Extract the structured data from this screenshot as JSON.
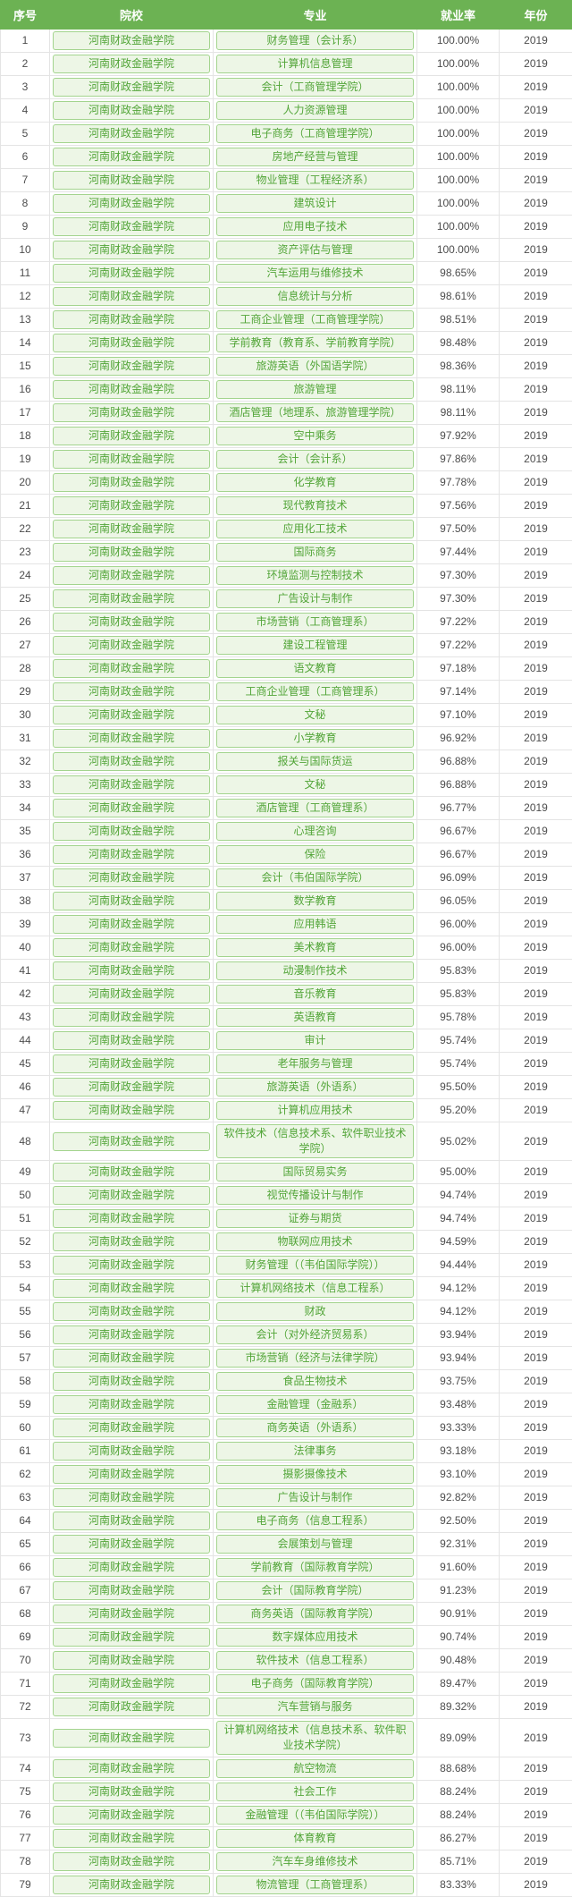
{
  "colors": {
    "header_bg": "#6cb253",
    "header_text": "#ffffff",
    "tag_bg": "#edf6e6",
    "tag_border": "#a3d48e",
    "tag_text": "#52a538",
    "body_text": "#4d4d4d",
    "row_border": "#e4e4e4"
  },
  "chart_data": {
    "type": "table",
    "columns": [
      "序号",
      "院校",
      "专业",
      "就业率",
      "年份"
    ],
    "rows": [
      [
        1,
        "河南财政金融学院",
        "财务管理（会计系）",
        "100.00%",
        2019
      ],
      [
        2,
        "河南财政金融学院",
        "计算机信息管理",
        "100.00%",
        2019
      ],
      [
        3,
        "河南财政金融学院",
        "会计（工商管理学院）",
        "100.00%",
        2019
      ],
      [
        4,
        "河南财政金融学院",
        "人力资源管理",
        "100.00%",
        2019
      ],
      [
        5,
        "河南财政金融学院",
        "电子商务（工商管理学院）",
        "100.00%",
        2019
      ],
      [
        6,
        "河南财政金融学院",
        "房地产经营与管理",
        "100.00%",
        2019
      ],
      [
        7,
        "河南财政金融学院",
        "物业管理（工程经济系）",
        "100.00%",
        2019
      ],
      [
        8,
        "河南财政金融学院",
        "建筑设计",
        "100.00%",
        2019
      ],
      [
        9,
        "河南财政金融学院",
        "应用电子技术",
        "100.00%",
        2019
      ],
      [
        10,
        "河南财政金融学院",
        "资产评估与管理",
        "100.00%",
        2019
      ],
      [
        11,
        "河南财政金融学院",
        "汽车运用与维修技术",
        "98.65%",
        2019
      ],
      [
        12,
        "河南财政金融学院",
        "信息统计与分析",
        "98.61%",
        2019
      ],
      [
        13,
        "河南财政金融学院",
        "工商企业管理（工商管理学院）",
        "98.51%",
        2019
      ],
      [
        14,
        "河南财政金融学院",
        "学前教育（教育系、学前教育学院）",
        "98.48%",
        2019
      ],
      [
        15,
        "河南财政金融学院",
        "旅游英语（外国语学院）",
        "98.36%",
        2019
      ],
      [
        16,
        "河南财政金融学院",
        "旅游管理",
        "98.11%",
        2019
      ],
      [
        17,
        "河南财政金融学院",
        "酒店管理（地理系、旅游管理学院）",
        "98.11%",
        2019
      ],
      [
        18,
        "河南财政金融学院",
        "空中乘务",
        "97.92%",
        2019
      ],
      [
        19,
        "河南财政金融学院",
        "会计（会计系）",
        "97.86%",
        2019
      ],
      [
        20,
        "河南财政金融学院",
        "化学教育",
        "97.78%",
        2019
      ],
      [
        21,
        "河南财政金融学院",
        "现代教育技术",
        "97.56%",
        2019
      ],
      [
        22,
        "河南财政金融学院",
        "应用化工技术",
        "97.50%",
        2019
      ],
      [
        23,
        "河南财政金融学院",
        "国际商务",
        "97.44%",
        2019
      ],
      [
        24,
        "河南财政金融学院",
        "环境监测与控制技术",
        "97.30%",
        2019
      ],
      [
        25,
        "河南财政金融学院",
        "广告设计与制作",
        "97.30%",
        2019
      ],
      [
        26,
        "河南财政金融学院",
        "市场营销（工商管理系）",
        "97.22%",
        2019
      ],
      [
        27,
        "河南财政金融学院",
        "建设工程管理",
        "97.22%",
        2019
      ],
      [
        28,
        "河南财政金融学院",
        "语文教育",
        "97.18%",
        2019
      ],
      [
        29,
        "河南财政金融学院",
        "工商企业管理（工商管理系）",
        "97.14%",
        2019
      ],
      [
        30,
        "河南财政金融学院",
        "文秘",
        "97.10%",
        2019
      ],
      [
        31,
        "河南财政金融学院",
        "小学教育",
        "96.92%",
        2019
      ],
      [
        32,
        "河南财政金融学院",
        "报关与国际货运",
        "96.88%",
        2019
      ],
      [
        33,
        "河南财政金融学院",
        "文秘",
        "96.88%",
        2019
      ],
      [
        34,
        "河南财政金融学院",
        "酒店管理（工商管理系）",
        "96.77%",
        2019
      ],
      [
        35,
        "河南财政金融学院",
        "心理咨询",
        "96.67%",
        2019
      ],
      [
        36,
        "河南财政金融学院",
        "保险",
        "96.67%",
        2019
      ],
      [
        37,
        "河南财政金融学院",
        "会计（韦伯国际学院）",
        "96.09%",
        2019
      ],
      [
        38,
        "河南财政金融学院",
        "数学教育",
        "96.05%",
        2019
      ],
      [
        39,
        "河南财政金融学院",
        "应用韩语",
        "96.00%",
        2019
      ],
      [
        40,
        "河南财政金融学院",
        "美术教育",
        "96.00%",
        2019
      ],
      [
        41,
        "河南财政金融学院",
        "动漫制作技术",
        "95.83%",
        2019
      ],
      [
        42,
        "河南财政金融学院",
        "音乐教育",
        "95.83%",
        2019
      ],
      [
        43,
        "河南财政金融学院",
        "英语教育",
        "95.78%",
        2019
      ],
      [
        44,
        "河南财政金融学院",
        "审计",
        "95.74%",
        2019
      ],
      [
        45,
        "河南财政金融学院",
        "老年服务与管理",
        "95.74%",
        2019
      ],
      [
        46,
        "河南财政金融学院",
        "旅游英语（外语系）",
        "95.50%",
        2019
      ],
      [
        47,
        "河南财政金融学院",
        "计算机应用技术",
        "95.20%",
        2019
      ],
      [
        48,
        "河南财政金融学院",
        "软件技术（信息技术系、软件职业技术学院）",
        "95.02%",
        2019
      ],
      [
        49,
        "河南财政金融学院",
        "国际贸易实务",
        "95.00%",
        2019
      ],
      [
        50,
        "河南财政金融学院",
        "视觉传播设计与制作",
        "94.74%",
        2019
      ],
      [
        51,
        "河南财政金融学院",
        "证券与期货",
        "94.74%",
        2019
      ],
      [
        52,
        "河南财政金融学院",
        "物联网应用技术",
        "94.59%",
        2019
      ],
      [
        53,
        "河南财政金融学院",
        "财务管理（（韦伯国际学院））",
        "94.44%",
        2019
      ],
      [
        54,
        "河南财政金融学院",
        "计算机网络技术（信息工程系）",
        "94.12%",
        2019
      ],
      [
        55,
        "河南财政金融学院",
        "财政",
        "94.12%",
        2019
      ],
      [
        56,
        "河南财政金融学院",
        "会计（对外经济贸易系）",
        "93.94%",
        2019
      ],
      [
        57,
        "河南财政金融学院",
        "市场营销（经济与法律学院）",
        "93.94%",
        2019
      ],
      [
        58,
        "河南财政金融学院",
        "食品生物技术",
        "93.75%",
        2019
      ],
      [
        59,
        "河南财政金融学院",
        "金融管理（金融系）",
        "93.48%",
        2019
      ],
      [
        60,
        "河南财政金融学院",
        "商务英语（外语系）",
        "93.33%",
        2019
      ],
      [
        61,
        "河南财政金融学院",
        "法律事务",
        "93.18%",
        2019
      ],
      [
        62,
        "河南财政金融学院",
        "摄影摄像技术",
        "93.10%",
        2019
      ],
      [
        63,
        "河南财政金融学院",
        "广告设计与制作",
        "92.82%",
        2019
      ],
      [
        64,
        "河南财政金融学院",
        "电子商务（信息工程系）",
        "92.50%",
        2019
      ],
      [
        65,
        "河南财政金融学院",
        "会展策划与管理",
        "92.31%",
        2019
      ],
      [
        66,
        "河南财政金融学院",
        "学前教育（国际教育学院）",
        "91.60%",
        2019
      ],
      [
        67,
        "河南财政金融学院",
        "会计（国际教育学院）",
        "91.23%",
        2019
      ],
      [
        68,
        "河南财政金融学院",
        "商务英语（国际教育学院）",
        "90.91%",
        2019
      ],
      [
        69,
        "河南财政金融学院",
        "数字媒体应用技术",
        "90.74%",
        2019
      ],
      [
        70,
        "河南财政金融学院",
        "软件技术（信息工程系）",
        "90.48%",
        2019
      ],
      [
        71,
        "河南财政金融学院",
        "电子商务（国际教育学院）",
        "89.47%",
        2019
      ],
      [
        72,
        "河南财政金融学院",
        "汽车营销与服务",
        "89.32%",
        2019
      ],
      [
        73,
        "河南财政金融学院",
        "计算机网络技术（信息技术系、软件职业技术学院）",
        "89.09%",
        2019
      ],
      [
        74,
        "河南财政金融学院",
        "航空物流",
        "88.68%",
        2019
      ],
      [
        75,
        "河南财政金融学院",
        "社会工作",
        "88.24%",
        2019
      ],
      [
        76,
        "河南财政金融学院",
        "金融管理（（韦伯国际学院））",
        "88.24%",
        2019
      ],
      [
        77,
        "河南财政金融学院",
        "体育教育",
        "86.27%",
        2019
      ],
      [
        78,
        "河南财政金融学院",
        "汽车车身维修技术",
        "85.71%",
        2019
      ],
      [
        79,
        "河南财政金融学院",
        "物流管理（工商管理系）",
        "83.33%",
        2019
      ]
    ]
  }
}
